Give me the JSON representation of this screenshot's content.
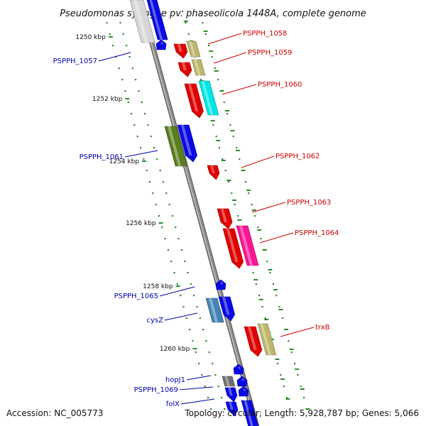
{
  "title": "Pseudomonas syringae pv. phaseolicola 1448A, complete genome",
  "footer": {
    "accession": "Accession: NC_005773",
    "summary": "Topology: circular; Length: 5,928,787 bp; Genes: 5,066"
  },
  "colors": {
    "backbone": "#8c8c8c",
    "tick": "#2e8b2e",
    "label_forward": "#cc0000",
    "label_reverse": "#0000aa",
    "red": "#e00000",
    "blue": "#0a0ae6",
    "khaki": "#bdb76b",
    "cyan": "#00e5e5",
    "olive": "#5a7d1e",
    "magenta": "#ff1493",
    "steel": "#4682b4",
    "gray": "#6e6e6e",
    "silver": "#d6d6d6"
  },
  "ticks": [
    {
      "label": "1250 kbp"
    },
    {
      "label": "1252 kbp"
    },
    {
      "label": "1254 kbp"
    },
    {
      "label": "1256 kbp"
    },
    {
      "label": "1258 kbp"
    },
    {
      "label": "1260 kbp"
    }
  ],
  "features": [
    {
      "side": "inner",
      "color": "silver",
      "shape": "bar"
    },
    {
      "side": "inner",
      "color": "blue",
      "shape": "bar"
    },
    {
      "side": "inner",
      "color": "blue",
      "shape": "pent"
    },
    {
      "side": "outer",
      "color": "red",
      "shape": "arrow"
    },
    {
      "side": "outer",
      "color": "khaki",
      "shape": "bar"
    },
    {
      "side": "outer",
      "color": "red",
      "shape": "arrow"
    },
    {
      "side": "outer",
      "color": "khaki",
      "shape": "bar"
    },
    {
      "side": "outer",
      "color": "red",
      "shape": "arrow"
    },
    {
      "side": "outer",
      "color": "cyan",
      "shape": "bar"
    },
    {
      "side": "inner",
      "color": "olive",
      "shape": "bar"
    },
    {
      "side": "inner",
      "color": "blue",
      "shape": "arrow"
    },
    {
      "side": "outer",
      "color": "red",
      "shape": "arrow"
    },
    {
      "side": "outer",
      "color": "red",
      "shape": "arrow"
    },
    {
      "side": "outer",
      "color": "red",
      "shape": "arrow"
    },
    {
      "side": "outer",
      "color": "magenta",
      "shape": "bar"
    },
    {
      "side": "inner",
      "color": "blue",
      "shape": "pent"
    },
    {
      "side": "inner",
      "color": "steel",
      "shape": "bar"
    },
    {
      "side": "inner",
      "color": "blue",
      "shape": "arrow"
    },
    {
      "side": "outer",
      "color": "red",
      "shape": "arrow"
    },
    {
      "side": "outer",
      "color": "khaki",
      "shape": "bar"
    },
    {
      "side": "inner",
      "color": "blue",
      "shape": "pent"
    },
    {
      "side": "inner",
      "color": "gray",
      "shape": "bar"
    },
    {
      "side": "inner",
      "color": "blue",
      "shape": "pent"
    },
    {
      "side": "inner",
      "color": "blue",
      "shape": "arrow"
    },
    {
      "side": "inner",
      "color": "blue",
      "shape": "pent"
    },
    {
      "side": "inner",
      "color": "blue",
      "shape": "arrow"
    },
    {
      "side": "inner",
      "color": "blue",
      "shape": "bar"
    }
  ],
  "labels": [
    {
      "text": "PSPPH_1058",
      "side": "outer"
    },
    {
      "text": "PSPPH_1059",
      "side": "outer"
    },
    {
      "text": "PSPPH_1060",
      "side": "outer"
    },
    {
      "text": "PSPPH_1062",
      "side": "outer"
    },
    {
      "text": "PSPPH_1063",
      "side": "outer"
    },
    {
      "text": "PSPPH_1064",
      "side": "outer"
    },
    {
      "text": "trxB",
      "side": "outer"
    },
    {
      "text": "PSPPH_1057",
      "side": "inner"
    },
    {
      "text": "PSPPH_1061",
      "side": "inner"
    },
    {
      "text": "PSPPH_1065",
      "side": "inner"
    },
    {
      "text": "cysZ",
      "side": "inner"
    },
    {
      "text": "hopJ1",
      "side": "inner"
    },
    {
      "text": "PSPPH_1069",
      "side": "inner"
    },
    {
      "text": "folX",
      "side": "inner"
    }
  ]
}
